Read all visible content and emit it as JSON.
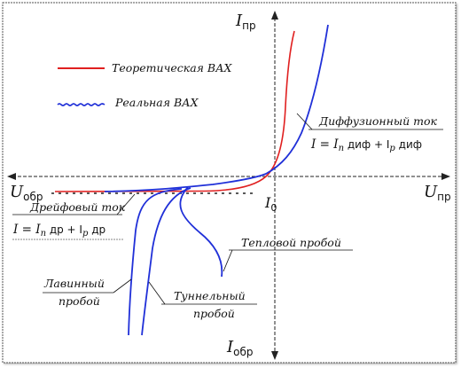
{
  "axes": {
    "y_top": {
      "main": "I",
      "sub": "пр"
    },
    "y_bottom": {
      "main": "I",
      "sub": "обр"
    },
    "x_right": {
      "main": "U",
      "sub": "пр"
    },
    "x_left": {
      "main": "U",
      "sub": "обр"
    },
    "origin": {
      "main": "I",
      "sub": "0"
    }
  },
  "legend": {
    "theoretical": "Теоретическая ВАХ",
    "real": "Реальная ВАХ"
  },
  "annotations": {
    "diffusion": {
      "title": "Диффузионный ток",
      "eq": {
        "lhs": "I = I",
        "s1": "n",
        "d1": " диф + I",
        "s2": "p",
        "d2": " диф"
      }
    },
    "drift": {
      "title": "Дрейфовый ток",
      "eq": {
        "lhs": "I = I",
        "s1": "n",
        "d1": " др + I",
        "s2": "p",
        "d2": " др"
      }
    },
    "thermal": "Тепловой пробой",
    "avalanche": {
      "line1": "Лавинный",
      "line2": "пробой"
    },
    "tunnel": {
      "line1": "Туннельный",
      "line2": "пробой"
    }
  },
  "colors": {
    "theoretical": "#e02020",
    "real": "#2030d8",
    "axis": "#222222",
    "text": "#111111"
  }
}
